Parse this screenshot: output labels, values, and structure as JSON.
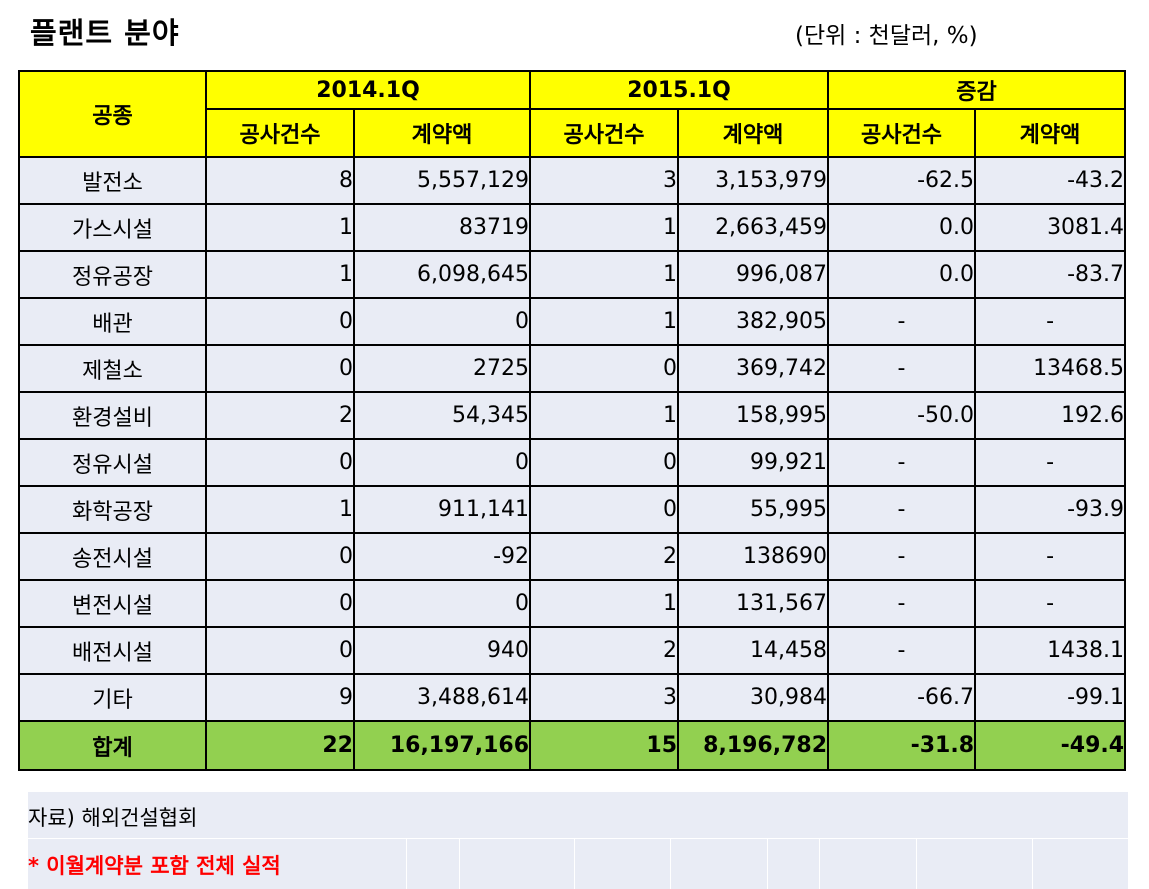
{
  "title": "플랜트 분야",
  "unit": "(단위 : 천달러, %)",
  "header": {
    "category": "공종",
    "period1": "2014.1Q",
    "period2": "2015.1Q",
    "change": "증감",
    "sub_count": "공사건수",
    "sub_amount": "계약액"
  },
  "rows": [
    {
      "name": "발전소",
      "c1": "8",
      "a1": "5,557,129",
      "c2": "3",
      "a2": "3,153,979",
      "cc": "-62.5",
      "ca": "-43.2"
    },
    {
      "name": "가스시설",
      "c1": "1",
      "a1": "83719",
      "c2": "1",
      "a2": "2,663,459",
      "cc": "0.0",
      "ca": "3081.4"
    },
    {
      "name": "정유공장",
      "c1": "1",
      "a1": "6,098,645",
      "c2": "1",
      "a2": "996,087",
      "cc": "0.0",
      "ca": "-83.7"
    },
    {
      "name": "배관",
      "c1": "0",
      "a1": "0",
      "c2": "1",
      "a2": "382,905",
      "cc": "-",
      "ca": "-"
    },
    {
      "name": "제철소",
      "c1": "0",
      "a1": "2725",
      "c2": "0",
      "a2": "369,742",
      "cc": "-",
      "ca": "13468.5"
    },
    {
      "name": "환경설비",
      "c1": "2",
      "a1": "54,345",
      "c2": "1",
      "a2": "158,995",
      "cc": "-50.0",
      "ca": "192.6"
    },
    {
      "name": "정유시설",
      "c1": "0",
      "a1": "0",
      "c2": "0",
      "a2": "99,921",
      "cc": "-",
      "ca": "-"
    },
    {
      "name": "화학공장",
      "c1": "1",
      "a1": "911,141",
      "c2": "0",
      "a2": "55,995",
      "cc": "-",
      "ca": "-93.9"
    },
    {
      "name": "송전시설",
      "c1": "0",
      "a1": "-92",
      "c2": "2",
      "a2": "138690",
      "cc": "-",
      "ca": "-"
    },
    {
      "name": "변전시설",
      "c1": "0",
      "a1": "0",
      "c2": "1",
      "a2": "131,567",
      "cc": "-",
      "ca": "-"
    },
    {
      "name": "배전시설",
      "c1": "0",
      "a1": "940",
      "c2": "2",
      "a2": "14,458",
      "cc": "-",
      "ca": "1438.1"
    },
    {
      "name": "기타",
      "c1": "9",
      "a1": "3,488,614",
      "c2": "3",
      "a2": "30,984",
      "cc": "-66.7",
      "ca": "-99.1"
    }
  ],
  "total": {
    "name": "합계",
    "c1": "22",
    "a1": "16,197,166",
    "c2": "15",
    "a2": "8,196,782",
    "cc": "-31.8",
    "ca": "-49.4"
  },
  "notes": {
    "source": "자료) 해외건설협회",
    "remark": "* 이월계약분 포함 전체 실적"
  }
}
